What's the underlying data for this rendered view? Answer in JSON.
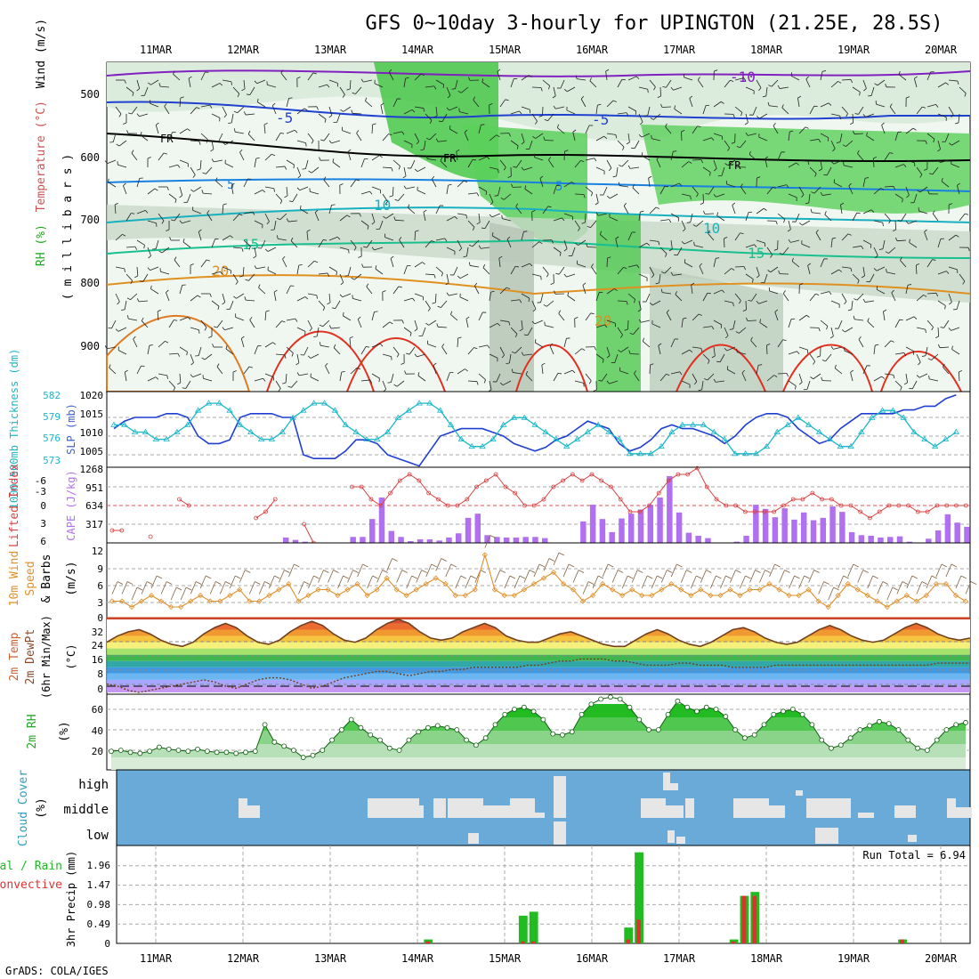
{
  "title": "GFS 0~10day 3-hourly for UPINGTON (21.25E, 28.5S)",
  "credit": "GrADS: COLA/IGES",
  "run_total_label": "Run Total = 6.94",
  "colors": {
    "rh": "#2ec42e",
    "temp_blue": "#1f3fd0",
    "temp_cyan": "#19b7c9",
    "temp_orange": "#e08a1a",
    "temp_red": "#d42020",
    "slp": "#1f3fd0",
    "thickness": "#19b7c9",
    "lifted": "#d84040",
    "cape": "#b070f0",
    "wind": "#e0902a",
    "cloud_bg": "#6aaad8",
    "cloud_fill": "#e6e6e6",
    "precip_total": "#22bb22",
    "precip_conv": "#e03030"
  },
  "dates": [
    "11MAR",
    "12MAR",
    "13MAR",
    "14MAR",
    "15MAR",
    "16MAR",
    "17MAR",
    "18MAR",
    "19MAR",
    "20MAR"
  ],
  "upper": {
    "ylabel_parts": [
      "RH (%)",
      "Temperature (°C)",
      "Wind (m/s)"
    ],
    "ylabel_axis": "( m i l l i b a r s )",
    "yticks": [
      "500",
      "600",
      "700",
      "800",
      "900"
    ],
    "contour_labels": [
      "-10",
      "-5",
      "-5",
      "FR",
      "FR",
      "FR",
      "5",
      "10",
      "10",
      "15",
      "15",
      "20",
      "20",
      "5"
    ]
  },
  "slp_panel": {
    "ylabel_left": "1000-500mb Thickness (dm)",
    "ylabel_right": "SLP (mb)",
    "left_ticks": [
      "582",
      "579",
      "576",
      "573"
    ],
    "right_ticks": [
      "1020",
      "1015",
      "1010",
      "1005"
    ]
  },
  "cape_panel": {
    "ylabel_left": "Lifted Index",
    "ylabel_right": "CAPE (J/kg)",
    "left_ticks": [
      "-6",
      "-3",
      "0",
      "3",
      "6"
    ],
    "right_ticks": [
      "1268",
      "951",
      "634",
      "317"
    ]
  },
  "wind_panel": {
    "ylabel": [
      "10m Wind",
      "Speed",
      "& Barbs",
      "(m/s)"
    ],
    "ticks": [
      "12",
      "9",
      "6",
      "3",
      "0"
    ]
  },
  "temp_panel": {
    "ylabel": [
      "2m Temp",
      "2m DewPt",
      "(6hr Min/Max)",
      "(°C)"
    ],
    "ticks": [
      "32",
      "24",
      "16",
      "8",
      "0"
    ]
  },
  "rh_panel": {
    "ylabel": [
      "2m RH",
      "(%)"
    ],
    "ticks": [
      "60",
      "40",
      "20"
    ]
  },
  "cloud_panel": {
    "ylabel": [
      "Cloud Cover",
      "(%)"
    ],
    "levels": [
      "high",
      "middle",
      "low"
    ]
  },
  "precip_panel": {
    "ylabel": [
      "Total / Rain",
      "Convective",
      "3hr Precip (mm)"
    ],
    "ticks": [
      "1.96",
      "1.47",
      "0.98",
      "0.49",
      "0"
    ]
  },
  "chart_data": [
    {
      "type": "line",
      "name": "SLP / thickness",
      "x_unit": "3-hourly step (0 = 11MAR 00Z approx)",
      "series": [
        {
          "name": "SLP (mb)",
          "values": [
            1012,
            1014,
            1015,
            1015,
            1015,
            1016,
            1016,
            1015,
            1010,
            1008,
            1008,
            1009,
            1015,
            1016,
            1016,
            1016,
            1015,
            1015,
            1005,
            1004,
            1004,
            1004,
            1006,
            1009,
            1009,
            1008,
            1005,
            1004,
            1003,
            1002,
            1006,
            1010,
            1011,
            1012,
            1012,
            1012,
            1011,
            1010,
            1008,
            1007,
            1006,
            1007,
            1009,
            1010,
            1012,
            1014,
            1013,
            1012,
            1008,
            1006,
            1007,
            1009,
            1012,
            1013,
            1012,
            1012,
            1011,
            1010,
            1008,
            1010,
            1013,
            1015,
            1016,
            1016,
            1015,
            1012,
            1010,
            1008,
            1009,
            1012,
            1014,
            1016,
            1016,
            1016,
            1016,
            1017,
            1017,
            1018,
            1018,
            1020,
            1021
          ]
        },
        {
          "name": "Thickness (dm)",
          "values": [
            578,
            578,
            577,
            577,
            576,
            576,
            577,
            578,
            580,
            581,
            581,
            580,
            578,
            577,
            576,
            576,
            577,
            579,
            580,
            581,
            581,
            580,
            578,
            577,
            576,
            576,
            577,
            579,
            580,
            581,
            581,
            580,
            578,
            576,
            575,
            575,
            576,
            578,
            579,
            579,
            578,
            577,
            576,
            575,
            576,
            577,
            578,
            577,
            576,
            574,
            574,
            574,
            575,
            577,
            578,
            578,
            578,
            577,
            576,
            574,
            574,
            574,
            575,
            577,
            578,
            579,
            578,
            577,
            576,
            575,
            575,
            577,
            579,
            580,
            580,
            579,
            577,
            576,
            575,
            576,
            577
          ]
        }
      ]
    },
    {
      "type": "bar",
      "name": "CAPE / Lifted Index",
      "series": [
        {
          "name": "CAPE (J/kg)",
          "values": [
            0,
            0,
            0,
            0,
            0,
            0,
            0,
            0,
            0,
            0,
            0,
            0,
            0,
            0,
            0,
            0,
            0,
            0,
            90,
            50,
            20,
            0,
            0,
            0,
            0,
            100,
            100,
            400,
            760,
            200,
            100,
            30,
            60,
            60,
            40,
            90,
            160,
            420,
            490,
            130,
            100,
            90,
            90,
            100,
            100,
            80,
            0,
            0,
            0,
            360,
            640,
            400,
            180,
            410,
            490,
            560,
            640,
            760,
            1120,
            510,
            170,
            120,
            80,
            0,
            0,
            20,
            120,
            640,
            570,
            430,
            580,
            390,
            510,
            380,
            420,
            610,
            520,
            180,
            130,
            120,
            90,
            100,
            110,
            20,
            0,
            70,
            210,
            480,
            340,
            270
          ]
        },
        {
          "name": "Lifted Index",
          "values": [
            4,
            4,
            null,
            null,
            5,
            null,
            null,
            -1,
            0,
            null,
            null,
            null,
            null,
            null,
            null,
            2,
            1,
            -1,
            null,
            null,
            3,
            6,
            null,
            null,
            null,
            -3,
            -3,
            -1,
            0,
            -2,
            -4,
            -5,
            -4,
            -2,
            -1,
            0,
            0,
            -1,
            -3,
            -4,
            -5,
            -3,
            -2,
            0,
            0,
            -1,
            -3,
            -4,
            -5,
            -4,
            -5,
            -4,
            -3,
            -1,
            1,
            1,
            0,
            -2,
            -4,
            -5,
            -5,
            -6,
            -3,
            -1,
            0,
            0,
            1,
            1,
            1,
            1,
            0,
            -1,
            -1,
            -2,
            -1,
            -1,
            0,
            0,
            1,
            2,
            1,
            0,
            0,
            0,
            1,
            1,
            0,
            0,
            0,
            0
          ]
        }
      ]
    },
    {
      "type": "line",
      "name": "10m wind speed",
      "series": [
        {
          "name": "Speed (m/s)",
          "values": [
            3,
            3,
            2,
            3,
            4,
            3,
            2,
            2,
            3,
            4,
            3,
            3,
            4,
            5,
            3,
            3,
            4,
            5,
            6,
            3,
            4,
            5,
            5,
            4,
            5,
            6,
            4,
            5,
            7,
            5,
            4,
            5,
            6,
            7,
            6,
            4,
            4,
            5,
            11,
            5,
            4,
            4,
            5,
            6,
            7,
            8,
            6,
            5,
            3,
            4,
            6,
            5,
            4,
            5,
            4,
            4,
            5,
            6,
            5,
            4,
            5,
            4,
            4,
            5,
            4,
            5,
            5,
            6,
            5,
            4,
            4,
            5,
            3,
            2,
            4,
            6,
            5,
            4,
            3,
            2,
            3,
            4,
            3,
            4,
            6,
            6,
            4,
            3
          ]
        }
      ]
    },
    {
      "type": "area",
      "name": "2m temperature and dew point",
      "series": [
        {
          "name": "2m Temp (°C)",
          "values": [
            24,
            27,
            29,
            30,
            28,
            25,
            23,
            22,
            24,
            28,
            31,
            33,
            31,
            27,
            24,
            23,
            25,
            29,
            32,
            34,
            32,
            28,
            25,
            24,
            26,
            30,
            33,
            35,
            33,
            29,
            26,
            25,
            26,
            29,
            31,
            33,
            31,
            27,
            25,
            24,
            24,
            26,
            28,
            29,
            27,
            25,
            23,
            22,
            22,
            25,
            28,
            30,
            28,
            25,
            23,
            22,
            24,
            27,
            30,
            31,
            29,
            26,
            24,
            23,
            24,
            27,
            30,
            32,
            30,
            27,
            25,
            24,
            25,
            28,
            31,
            33,
            31,
            28,
            26,
            25,
            26
          ]
        },
        {
          "name": "2m DewPt (°C)",
          "values": [
            4,
            3,
            1,
            0,
            1,
            2,
            3,
            4,
            5,
            6,
            5,
            3,
            2,
            4,
            6,
            7,
            7,
            6,
            4,
            2,
            3,
            5,
            7,
            8,
            9,
            10,
            10,
            9,
            8,
            9,
            10,
            10,
            11,
            11,
            12,
            12,
            12,
            12,
            12,
            13,
            13,
            14,
            15,
            15,
            16,
            16,
            16,
            15,
            15,
            14,
            13,
            13,
            13,
            14,
            14,
            13,
            13,
            13,
            12,
            12,
            12,
            12,
            13,
            13,
            13,
            13,
            13,
            13,
            13,
            13,
            13,
            13,
            13,
            13,
            13,
            13,
            13,
            14,
            14,
            14,
            14
          ]
        }
      ]
    },
    {
      "type": "area",
      "name": "2m RH",
      "series": [
        {
          "name": "2m RH (%)",
          "values": [
            19,
            20,
            18,
            17,
            19,
            23,
            21,
            20,
            19,
            21,
            19,
            18,
            18,
            17,
            18,
            19,
            45,
            28,
            24,
            20,
            13,
            15,
            20,
            30,
            40,
            50,
            42,
            35,
            30,
            22,
            20,
            30,
            38,
            42,
            44,
            42,
            40,
            30,
            25,
            32,
            45,
            55,
            60,
            62,
            58,
            50,
            36,
            35,
            38,
            55,
            65,
            70,
            72,
            70,
            62,
            50,
            40,
            40,
            55,
            68,
            62,
            58,
            62,
            60,
            53,
            40,
            32,
            35,
            45,
            55,
            58,
            60,
            55,
            45,
            30,
            22,
            25,
            32,
            40,
            44,
            48,
            46,
            40,
            30,
            22,
            20,
            30,
            40,
            45,
            47
          ]
        }
      ]
    },
    {
      "type": "bar",
      "name": "3hr precip",
      "series": [
        {
          "name": "Total (mm)",
          "values": [
            0,
            0,
            0,
            0,
            0,
            0,
            0,
            0,
            0,
            0,
            0,
            0,
            0,
            0,
            0,
            0,
            0,
            0,
            0,
            0,
            0,
            0,
            0,
            0,
            0,
            0,
            0,
            0,
            0,
            0.1,
            0,
            0,
            0,
            0,
            0,
            0,
            0,
            0,
            0.7,
            0.8,
            0,
            0,
            0,
            0,
            0,
            0,
            0,
            0,
            0.4,
            2.3,
            0,
            0,
            0,
            0,
            0,
            0,
            0,
            0,
            0.1,
            1.2,
            1.3,
            0,
            0,
            0,
            0,
            0,
            0,
            0,
            0,
            0,
            0,
            0,
            0,
            0,
            0.1,
            0,
            0,
            0,
            0,
            0,
            0
          ]
        },
        {
          "name": "Convective (mm)",
          "values": [
            0,
            0,
            0,
            0,
            0,
            0,
            0,
            0,
            0,
            0,
            0,
            0,
            0,
            0,
            0,
            0,
            0,
            0,
            0,
            0,
            0,
            0,
            0,
            0,
            0,
            0,
            0,
            0,
            0,
            0.05,
            0,
            0,
            0,
            0,
            0,
            0,
            0,
            0,
            0.05,
            0.05,
            0,
            0,
            0,
            0,
            0,
            0,
            0,
            0,
            0.1,
            0.6,
            0,
            0,
            0,
            0,
            0,
            0,
            0,
            0,
            0.05,
            1.2,
            1.2,
            0,
            0,
            0,
            0,
            0,
            0,
            0,
            0,
            0,
            0,
            0,
            0,
            0,
            0.1,
            0,
            0,
            0,
            0,
            0,
            0
          ]
        }
      ]
    }
  ]
}
